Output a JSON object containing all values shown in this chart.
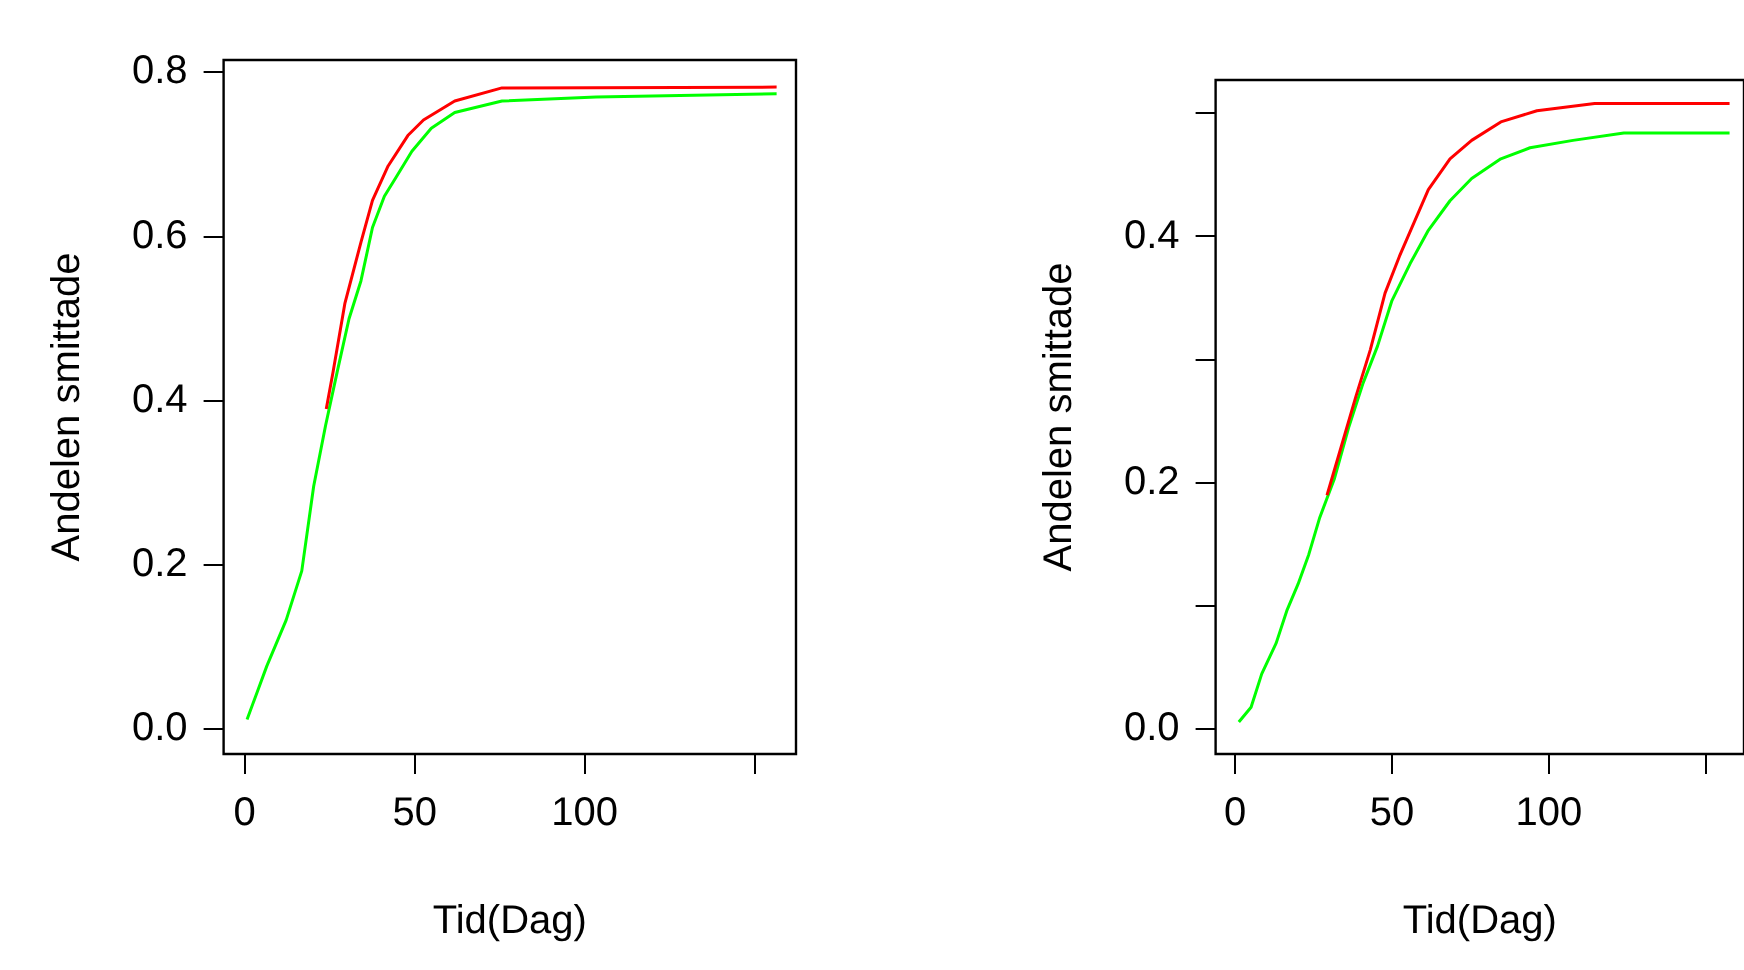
{
  "chart_data": [
    {
      "type": "line",
      "xlabel": "Tid(Dag)",
      "ylabel": "Andelen smittade",
      "xlim": [
        -6.2,
        162.2
      ],
      "xticks": [
        0,
        50,
        100,
        {
          "value": 150,
          "label": null
        }
      ],
      "ylim": [
        -0.03,
        0.815
      ],
      "yticks": [
        {
          "value": 0,
          "label": "0.0"
        },
        {
          "value": 0.2,
          "label": "0.2"
        },
        {
          "value": 0.4,
          "label": "0.4"
        },
        {
          "value": 0.6,
          "label": "0.6"
        },
        {
          "value": 0.8,
          "label": "0.8"
        }
      ],
      "series": [
        {
          "color": "#ff0000",
          "x": [
            24,
            26,
            29.5,
            34.2,
            37.6,
            42.2,
            48,
            52.6,
            61.8,
            75.7,
            156.5
          ],
          "values": [
            0.39,
            0.435,
            0.519,
            0.593,
            0.644,
            0.686,
            0.723,
            0.742,
            0.765,
            0.781,
            0.782
          ]
        },
        {
          "color": "#00ff00",
          "x": [
            0.7,
            6.5,
            12.2,
            16.8,
            20.3,
            23.8,
            27.2,
            30.7,
            34.2,
            37.6,
            41.1,
            44.5,
            49.2,
            54.9,
            61.8,
            75.7,
            103.4,
            156.5
          ],
          "values": [
            0.012,
            0.077,
            0.133,
            0.193,
            0.296,
            0.37,
            0.435,
            0.5,
            0.546,
            0.611,
            0.649,
            0.672,
            0.704,
            0.732,
            0.751,
            0.765,
            0.77,
            0.774
          ]
        }
      ]
    },
    {
      "type": "line",
      "xlabel": "Tid(Dag)",
      "ylabel": "Andelen smittade",
      "xlim": [
        -6.2,
        162.2
      ],
      "xticks": [
        0,
        50,
        100,
        {
          "value": 150,
          "label": null
        }
      ],
      "ylim": [
        -0.02,
        0.527
      ],
      "yticks": [
        {
          "value": 0,
          "label": "0.0"
        },
        {
          "value": 0.1,
          "label": null
        },
        {
          "value": 0.2,
          "label": "0.2"
        },
        {
          "value": 0.3,
          "label": null
        },
        {
          "value": 0.4,
          "label": "0.4"
        },
        {
          "value": 0.5,
          "label": null
        }
      ],
      "series": [
        {
          "color": "#ff0000",
          "x": [
            29.3,
            33.9,
            38.5,
            43.1,
            47.8,
            52.4,
            57,
            61.6,
            68.5,
            75.4,
            84.7,
            96.2,
            114.6,
            157.6
          ],
          "values": [
            0.19,
            0.23,
            0.27,
            0.308,
            0.354,
            0.384,
            0.411,
            0.438,
            0.463,
            0.478,
            0.493,
            0.502,
            0.508,
            0.508
          ]
        },
        {
          "color": "#00ff00",
          "x": [
            1.2,
            5.1,
            8.5,
            13.1,
            16.6,
            20.1,
            23.5,
            27,
            31.6,
            36.2,
            40.8,
            45.4,
            50,
            55.8,
            61.6,
            68.5,
            75.4,
            84.7,
            94,
            107.7,
            123.9,
            157.6
          ],
          "values": [
            0.006,
            0.018,
            0.045,
            0.07,
            0.097,
            0.118,
            0.142,
            0.172,
            0.203,
            0.245,
            0.281,
            0.311,
            0.348,
            0.378,
            0.405,
            0.429,
            0.447,
            0.463,
            0.472,
            0.478,
            0.484,
            0.484
          ]
        }
      ]
    }
  ]
}
